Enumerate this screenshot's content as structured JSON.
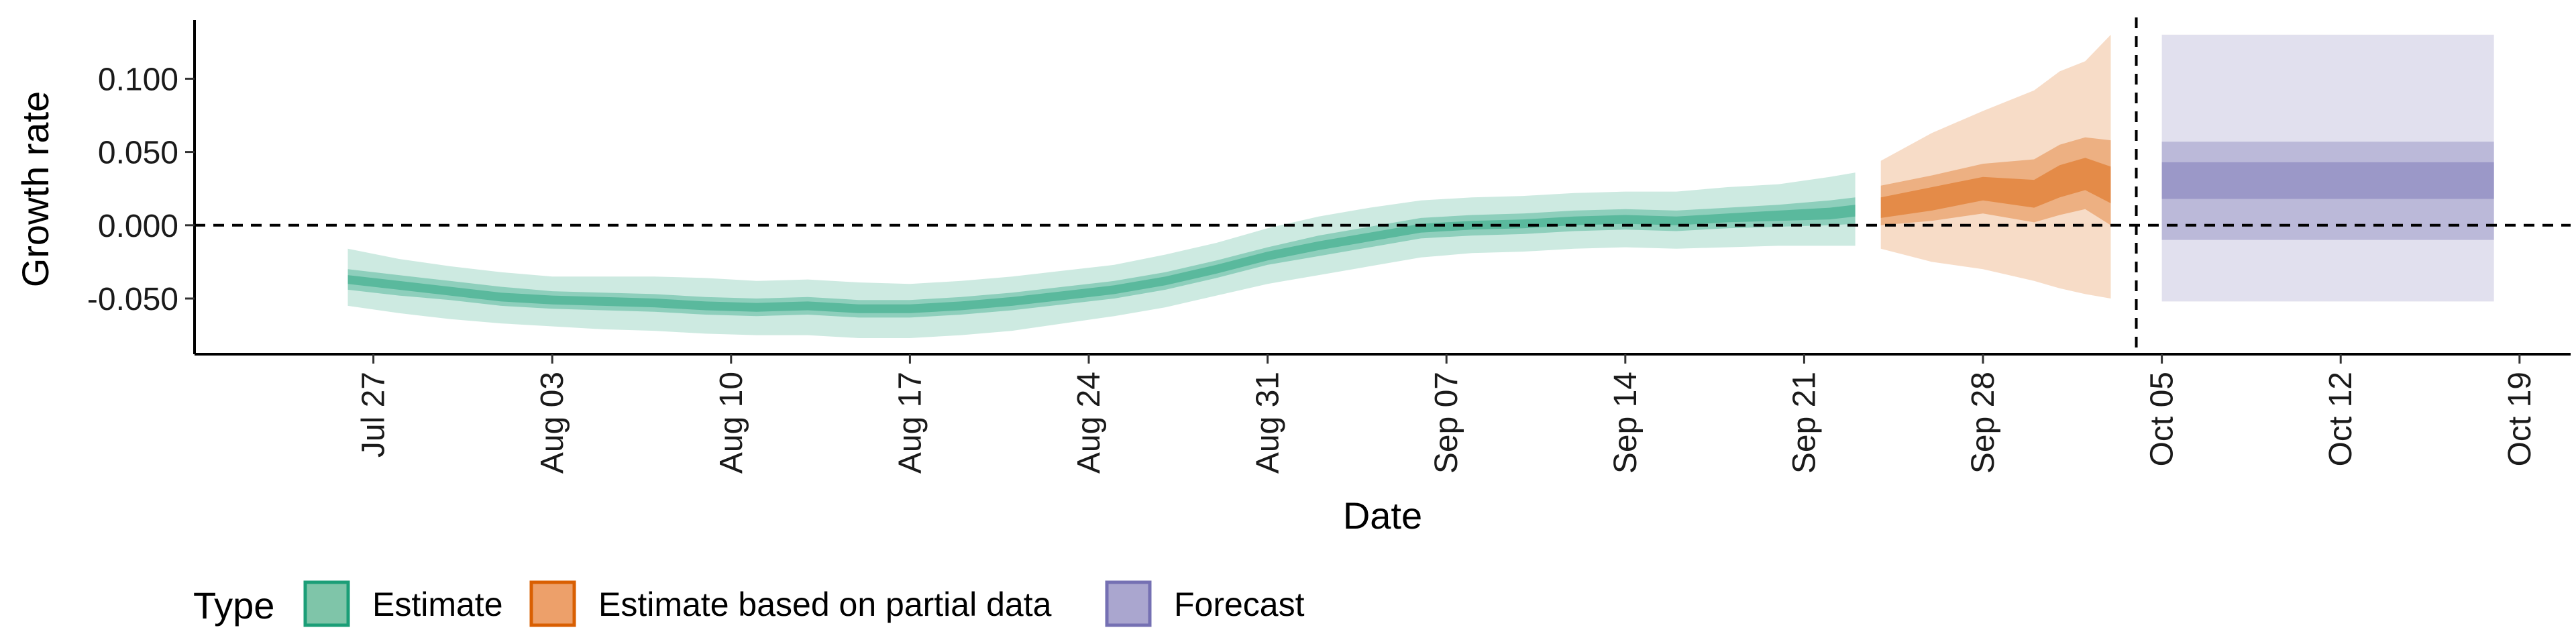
{
  "chart_data": {
    "type": "area",
    "title": "",
    "xlabel": "Date",
    "ylabel": "Growth rate",
    "x_type": "date",
    "xlim": [
      "2020-07-20",
      "2020-10-21"
    ],
    "ylim": [
      -0.088,
      0.14
    ],
    "x_ticks": [
      "2020-07-27",
      "2020-08-03",
      "2020-08-10",
      "2020-08-17",
      "2020-08-24",
      "2020-08-31",
      "2020-09-07",
      "2020-09-14",
      "2020-09-21",
      "2020-09-28",
      "2020-10-05",
      "2020-10-12",
      "2020-10-19"
    ],
    "x_tick_labels": [
      "Jul 27",
      "Aug 03",
      "Aug 10",
      "Aug 17",
      "Aug 24",
      "Aug 31",
      "Sep 07",
      "Sep 14",
      "Sep 21",
      "Sep 28",
      "Oct 05",
      "Oct 12",
      "Oct 19"
    ],
    "y_ticks": [
      -0.05,
      0.0,
      0.05,
      0.1
    ],
    "y_tick_labels": [
      "-0.050",
      "0.000",
      "0.050",
      "0.100"
    ],
    "hline_y": 0.0,
    "vline_x": "2020-10-04",
    "grid": false,
    "legend": {
      "title": "Type",
      "position": "bottom-left",
      "entries": [
        {
          "label": "Estimate",
          "fill": "#7fc5a9",
          "stroke": "#1b9e77"
        },
        {
          "label": "Estimate based on partial data",
          "fill": "#eda06a",
          "stroke": "#d95f02"
        },
        {
          "label": "Forecast",
          "fill": "#aaa6cf",
          "stroke": "#7570b3"
        }
      ]
    },
    "series": [
      {
        "name": "Estimate",
        "color": "#1b9e77",
        "points": [
          {
            "x": "2020-07-26",
            "median": -0.037,
            "lower_90": -0.055,
            "upper_90": -0.016,
            "lower_50": -0.044,
            "upper_50": -0.03,
            "lower_20": -0.04,
            "upper_20": -0.034
          },
          {
            "x": "2020-07-28",
            "median": -0.041,
            "lower_90": -0.06,
            "upper_90": -0.023,
            "lower_50": -0.048,
            "upper_50": -0.034,
            "lower_20": -0.044,
            "upper_20": -0.038
          },
          {
            "x": "2020-07-30",
            "median": -0.045,
            "lower_90": -0.064,
            "upper_90": -0.028,
            "lower_50": -0.051,
            "upper_50": -0.038,
            "lower_20": -0.048,
            "upper_20": -0.042
          },
          {
            "x": "2020-08-01",
            "median": -0.049,
            "lower_90": -0.067,
            "upper_90": -0.032,
            "lower_50": -0.055,
            "upper_50": -0.042,
            "lower_20": -0.052,
            "upper_20": -0.046
          },
          {
            "x": "2020-08-03",
            "median": -0.051,
            "lower_90": -0.069,
            "upper_90": -0.035,
            "lower_50": -0.057,
            "upper_50": -0.045,
            "lower_20": -0.054,
            "upper_20": -0.048
          },
          {
            "x": "2020-08-05",
            "median": -0.052,
            "lower_90": -0.071,
            "upper_90": -0.035,
            "lower_50": -0.058,
            "upper_50": -0.046,
            "lower_20": -0.055,
            "upper_20": -0.049
          },
          {
            "x": "2020-08-07",
            "median": -0.053,
            "lower_90": -0.072,
            "upper_90": -0.035,
            "lower_50": -0.059,
            "upper_50": -0.047,
            "lower_20": -0.056,
            "upper_20": -0.05
          },
          {
            "x": "2020-08-09",
            "median": -0.055,
            "lower_90": -0.074,
            "upper_90": -0.036,
            "lower_50": -0.061,
            "upper_50": -0.049,
            "lower_20": -0.058,
            "upper_20": -0.052
          },
          {
            "x": "2020-08-11",
            "median": -0.056,
            "lower_90": -0.075,
            "upper_90": -0.038,
            "lower_50": -0.062,
            "upper_50": -0.05,
            "lower_20": -0.059,
            "upper_20": -0.053
          },
          {
            "x": "2020-08-13",
            "median": -0.055,
            "lower_90": -0.075,
            "upper_90": -0.037,
            "lower_50": -0.061,
            "upper_50": -0.049,
            "lower_20": -0.058,
            "upper_20": -0.052
          },
          {
            "x": "2020-08-15",
            "median": -0.057,
            "lower_90": -0.077,
            "upper_90": -0.039,
            "lower_50": -0.063,
            "upper_50": -0.051,
            "lower_20": -0.06,
            "upper_20": -0.054
          },
          {
            "x": "2020-08-17",
            "median": -0.057,
            "lower_90": -0.077,
            "upper_90": -0.04,
            "lower_50": -0.063,
            "upper_50": -0.051,
            "lower_20": -0.06,
            "upper_20": -0.054
          },
          {
            "x": "2020-08-19",
            "median": -0.055,
            "lower_90": -0.075,
            "upper_90": -0.038,
            "lower_50": -0.061,
            "upper_50": -0.049,
            "lower_20": -0.058,
            "upper_20": -0.052
          },
          {
            "x": "2020-08-21",
            "median": -0.052,
            "lower_90": -0.072,
            "upper_90": -0.035,
            "lower_50": -0.058,
            "upper_50": -0.046,
            "lower_20": -0.055,
            "upper_20": -0.049
          },
          {
            "x": "2020-08-23",
            "median": -0.048,
            "lower_90": -0.067,
            "upper_90": -0.031,
            "lower_50": -0.054,
            "upper_50": -0.042,
            "lower_20": -0.051,
            "upper_20": -0.045
          },
          {
            "x": "2020-08-25",
            "median": -0.044,
            "lower_90": -0.062,
            "upper_90": -0.027,
            "lower_50": -0.05,
            "upper_50": -0.038,
            "lower_20": -0.047,
            "upper_20": -0.041
          },
          {
            "x": "2020-08-27",
            "median": -0.038,
            "lower_90": -0.056,
            "upper_90": -0.02,
            "lower_50": -0.044,
            "upper_50": -0.032,
            "lower_20": -0.041,
            "upper_20": -0.035
          },
          {
            "x": "2020-08-29",
            "median": -0.03,
            "lower_90": -0.048,
            "upper_90": -0.012,
            "lower_50": -0.036,
            "upper_50": -0.024,
            "lower_20": -0.033,
            "upper_20": -0.027
          },
          {
            "x": "2020-08-31",
            "median": -0.021,
            "lower_90": -0.04,
            "upper_90": -0.002,
            "lower_50": -0.027,
            "upper_50": -0.015,
            "lower_20": -0.024,
            "upper_20": -0.018
          },
          {
            "x": "2020-09-02",
            "median": -0.014,
            "lower_90": -0.034,
            "upper_90": 0.006,
            "lower_50": -0.021,
            "upper_50": -0.007,
            "lower_20": -0.017,
            "upper_20": -0.011
          },
          {
            "x": "2020-09-04",
            "median": -0.008,
            "lower_90": -0.028,
            "upper_90": 0.012,
            "lower_50": -0.015,
            "upper_50": -0.001,
            "lower_20": -0.011,
            "upper_20": -0.005
          },
          {
            "x": "2020-09-06",
            "median": -0.002,
            "lower_90": -0.022,
            "upper_90": 0.017,
            "lower_50": -0.009,
            "upper_50": 0.005,
            "lower_20": -0.005,
            "upper_20": 0.001
          },
          {
            "x": "2020-09-08",
            "median": 0.0,
            "lower_90": -0.019,
            "upper_90": 0.019,
            "lower_50": -0.007,
            "upper_50": 0.007,
            "lower_20": -0.003,
            "upper_20": 0.003
          },
          {
            "x": "2020-09-10",
            "median": 0.001,
            "lower_90": -0.018,
            "upper_90": 0.02,
            "lower_50": -0.006,
            "upper_50": 0.008,
            "lower_20": -0.002,
            "upper_20": 0.004
          },
          {
            "x": "2020-09-12",
            "median": 0.003,
            "lower_90": -0.016,
            "upper_90": 0.022,
            "lower_50": -0.004,
            "upper_50": 0.01,
            "lower_20": 0.0,
            "upper_20": 0.006
          },
          {
            "x": "2020-09-14",
            "median": 0.004,
            "lower_90": -0.015,
            "upper_90": 0.023,
            "lower_50": -0.003,
            "upper_50": 0.011,
            "lower_20": 0.001,
            "upper_20": 0.007
          },
          {
            "x": "2020-09-16",
            "median": 0.003,
            "lower_90": -0.016,
            "upper_90": 0.023,
            "lower_50": -0.004,
            "upper_50": 0.01,
            "lower_20": 0.0,
            "upper_20": 0.006
          },
          {
            "x": "2020-09-18",
            "median": 0.005,
            "lower_90": -0.015,
            "upper_90": 0.026,
            "lower_50": -0.002,
            "upper_50": 0.012,
            "lower_20": 0.002,
            "upper_20": 0.008
          },
          {
            "x": "2020-09-20",
            "median": 0.006,
            "lower_90": -0.014,
            "upper_90": 0.028,
            "lower_50": -0.001,
            "upper_50": 0.014,
            "lower_20": 0.003,
            "upper_20": 0.01
          },
          {
            "x": "2020-09-22",
            "median": 0.008,
            "lower_90": -0.014,
            "upper_90": 0.033,
            "lower_50": 0.0,
            "upper_50": 0.017,
            "lower_20": 0.004,
            "upper_20": 0.012
          },
          {
            "x": "2020-09-23",
            "median": 0.01,
            "lower_90": -0.014,
            "upper_90": 0.036,
            "lower_50": 0.001,
            "upper_50": 0.019,
            "lower_20": 0.006,
            "upper_20": 0.014
          }
        ]
      },
      {
        "name": "Estimate based on partial data",
        "color": "#d95f02",
        "points": [
          {
            "x": "2020-09-24",
            "median": 0.012,
            "lower_90": -0.016,
            "upper_90": 0.044,
            "lower_50": 0.0,
            "upper_50": 0.027,
            "lower_20": 0.005,
            "upper_20": 0.019
          },
          {
            "x": "2020-09-26",
            "median": 0.018,
            "lower_90": -0.025,
            "upper_90": 0.063,
            "lower_50": 0.003,
            "upper_50": 0.034,
            "lower_20": 0.01,
            "upper_20": 0.026
          },
          {
            "x": "2020-09-28",
            "median": 0.025,
            "lower_90": -0.03,
            "upper_90": 0.078,
            "lower_50": 0.008,
            "upper_50": 0.042,
            "lower_20": 0.017,
            "upper_20": 0.033
          },
          {
            "x": "2020-09-30",
            "median": 0.022,
            "lower_90": -0.038,
            "upper_90": 0.092,
            "lower_50": 0.002,
            "upper_50": 0.045,
            "lower_20": 0.012,
            "upper_20": 0.031
          },
          {
            "x": "2020-10-01",
            "median": 0.03,
            "lower_90": -0.043,
            "upper_90": 0.105,
            "lower_50": 0.007,
            "upper_50": 0.055,
            "lower_20": 0.019,
            "upper_20": 0.041
          },
          {
            "x": "2020-10-02",
            "median": 0.035,
            "lower_90": -0.047,
            "upper_90": 0.112,
            "lower_50": 0.011,
            "upper_50": 0.06,
            "lower_20": 0.024,
            "upper_20": 0.046
          },
          {
            "x": "2020-10-03",
            "median": 0.028,
            "lower_90": -0.05,
            "upper_90": 0.13,
            "lower_50": 0.0,
            "upper_50": 0.058,
            "lower_20": 0.015,
            "upper_20": 0.04
          }
        ]
      },
      {
        "name": "Forecast",
        "color": "#7570b3",
        "points": [
          {
            "x": "2020-10-05",
            "median": 0.03,
            "lower_90": -0.052,
            "upper_90": 0.13,
            "lower_50": -0.01,
            "upper_50": 0.057,
            "lower_20": 0.018,
            "upper_20": 0.043
          },
          {
            "x": "2020-10-18",
            "median": 0.03,
            "lower_90": -0.052,
            "upper_90": 0.13,
            "lower_50": -0.01,
            "upper_50": 0.057,
            "lower_20": 0.018,
            "upper_20": 0.043
          }
        ]
      }
    ]
  }
}
